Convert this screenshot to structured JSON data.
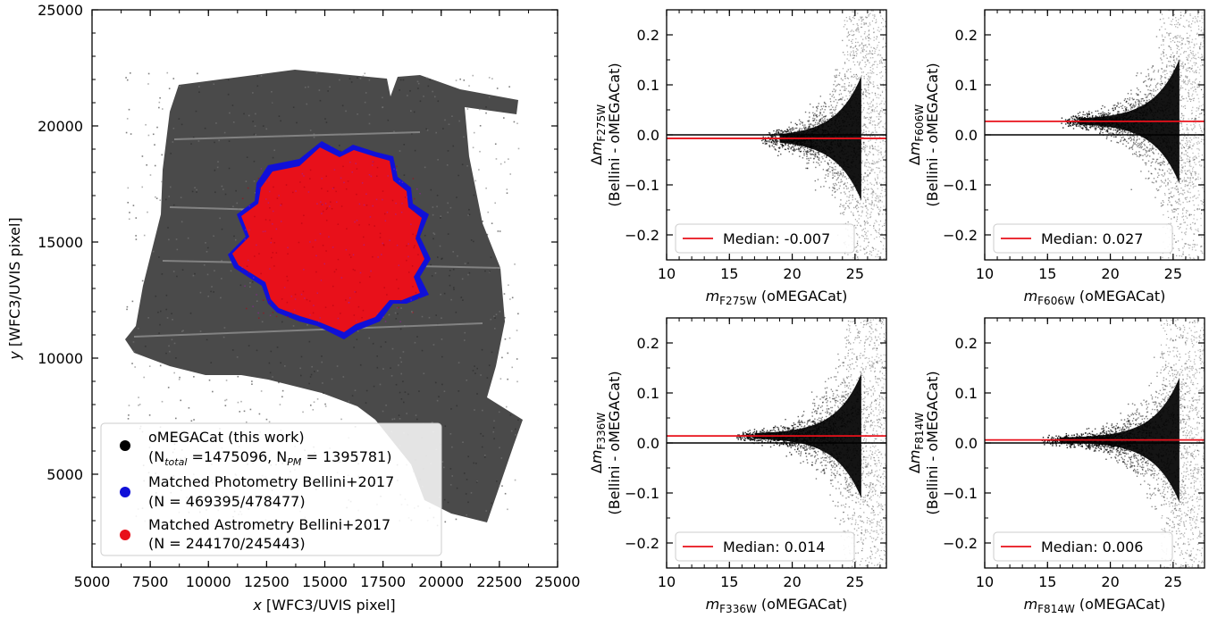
{
  "chart_data": [
    {
      "type": "scatter",
      "xlabel_prefix": "x",
      "xlabel_rest": " [WFC3/UVIS pixel]",
      "ylabel_prefix": "y",
      "ylabel_rest": " [WFC3/UVIS pixel]",
      "xlim": [
        5000,
        25000
      ],
      "ylim": [
        1000,
        25000
      ],
      "xticks": [
        "5000",
        "7500",
        "10000",
        "12500",
        "15000",
        "17500",
        "20000",
        "22500",
        "25000"
      ],
      "yticks": [
        "5000",
        "10000",
        "15000",
        "20000",
        "25000"
      ],
      "legend_position": "lower-left",
      "legend": [
        {
          "color": "#000000",
          "line1": "oMEGACat (this work)",
          "n_total_label": "N",
          "n_total_sub": "total",
          "n_total_value": " =1475096, N",
          "n_pm_sub": "PM",
          "n_pm_value": " = 1395781)"
        },
        {
          "color": "#1010d8",
          "line1": "Matched Photometry Bellini+2017",
          "line2": "(N = 469395/478477)"
        },
        {
          "color": "#e8101a",
          "line1": "Matched Astrometry Bellini+2017",
          "line2": "(N = 244170/245443)"
        }
      ],
      "regions": {
        "total_center": [
          14500,
          15500
        ],
        "photometry_center": [
          14500,
          15700
        ],
        "astrometry_center": [
          14400,
          15700
        ]
      }
    },
    {
      "type": "scatter",
      "filter": "F275W",
      "xlabel_m": "m",
      "xlabel_sub": "F275W",
      "xlabel_rest": " (oMEGACat)",
      "ylabel_line1_prefix": "Δm",
      "ylabel_line1_sub": "F275W",
      "ylabel_line2": "(Bellini - oMEGACat)",
      "xlim": [
        10,
        27.5
      ],
      "ylim": [
        -0.25,
        0.25
      ],
      "xticks": [
        "10",
        "15",
        "20",
        "25"
      ],
      "yticks": [
        "−0.2",
        "−0.1",
        "0.0",
        "0.1",
        "0.2"
      ],
      "median": -0.007,
      "legend_label": "Median: -0.007",
      "legend_position": "lower-left",
      "onset_mag": 17.5
    },
    {
      "type": "scatter",
      "filter": "F606W",
      "xlabel_m": "m",
      "xlabel_sub": "F606W",
      "xlabel_rest": " (oMEGACat)",
      "ylabel_line1_prefix": "Δm",
      "ylabel_line1_sub": "F606W",
      "ylabel_line2": "(Bellini - oMEGACat)",
      "xlim": [
        10,
        27.5
      ],
      "ylim": [
        -0.25,
        0.25
      ],
      "xticks": [
        "10",
        "15",
        "20",
        "25"
      ],
      "yticks": [
        "−0.2",
        "−0.1",
        "0.0",
        "0.1",
        "0.2"
      ],
      "median": 0.027,
      "legend_label": "Median: 0.027",
      "legend_position": "lower-left",
      "onset_mag": 16
    },
    {
      "type": "scatter",
      "filter": "F336W",
      "xlabel_m": "m",
      "xlabel_sub": "F336W",
      "xlabel_rest": " (oMEGACat)",
      "ylabel_line1_prefix": "Δm",
      "ylabel_line1_sub": "F336W",
      "ylabel_line2": "(Bellini - oMEGACat)",
      "xlim": [
        10,
        27.5
      ],
      "ylim": [
        -0.25,
        0.25
      ],
      "xticks": [
        "10",
        "15",
        "20",
        "25"
      ],
      "yticks": [
        "−0.2",
        "−0.1",
        "0.0",
        "0.1",
        "0.2"
      ],
      "median": 0.014,
      "legend_label": "Median: 0.014",
      "legend_position": "lower-left",
      "onset_mag": 15.5
    },
    {
      "type": "scatter",
      "filter": "F814W",
      "xlabel_m": "m",
      "xlabel_sub": "F814W",
      "xlabel_rest": " (oMEGACat)",
      "ylabel_line1_prefix": "Δm",
      "ylabel_line1_sub": "F814W",
      "ylabel_line2": "(Bellini - oMEGACat)",
      "xlim": [
        10,
        27.5
      ],
      "ylim": [
        -0.25,
        0.25
      ],
      "xticks": [
        "10",
        "15",
        "20",
        "25"
      ],
      "yticks": [
        "−0.2",
        "−0.1",
        "0.0",
        "0.1",
        "0.2"
      ],
      "median": 0.006,
      "legend_label": "Median: 0.006",
      "legend_position": "lower-left",
      "onset_mag": 14.5
    }
  ],
  "colors": {
    "points": "#000000",
    "photometry": "#1010d8",
    "astrometry": "#e8101a",
    "median_line": "#e8101a",
    "zero_line": "#000000"
  }
}
